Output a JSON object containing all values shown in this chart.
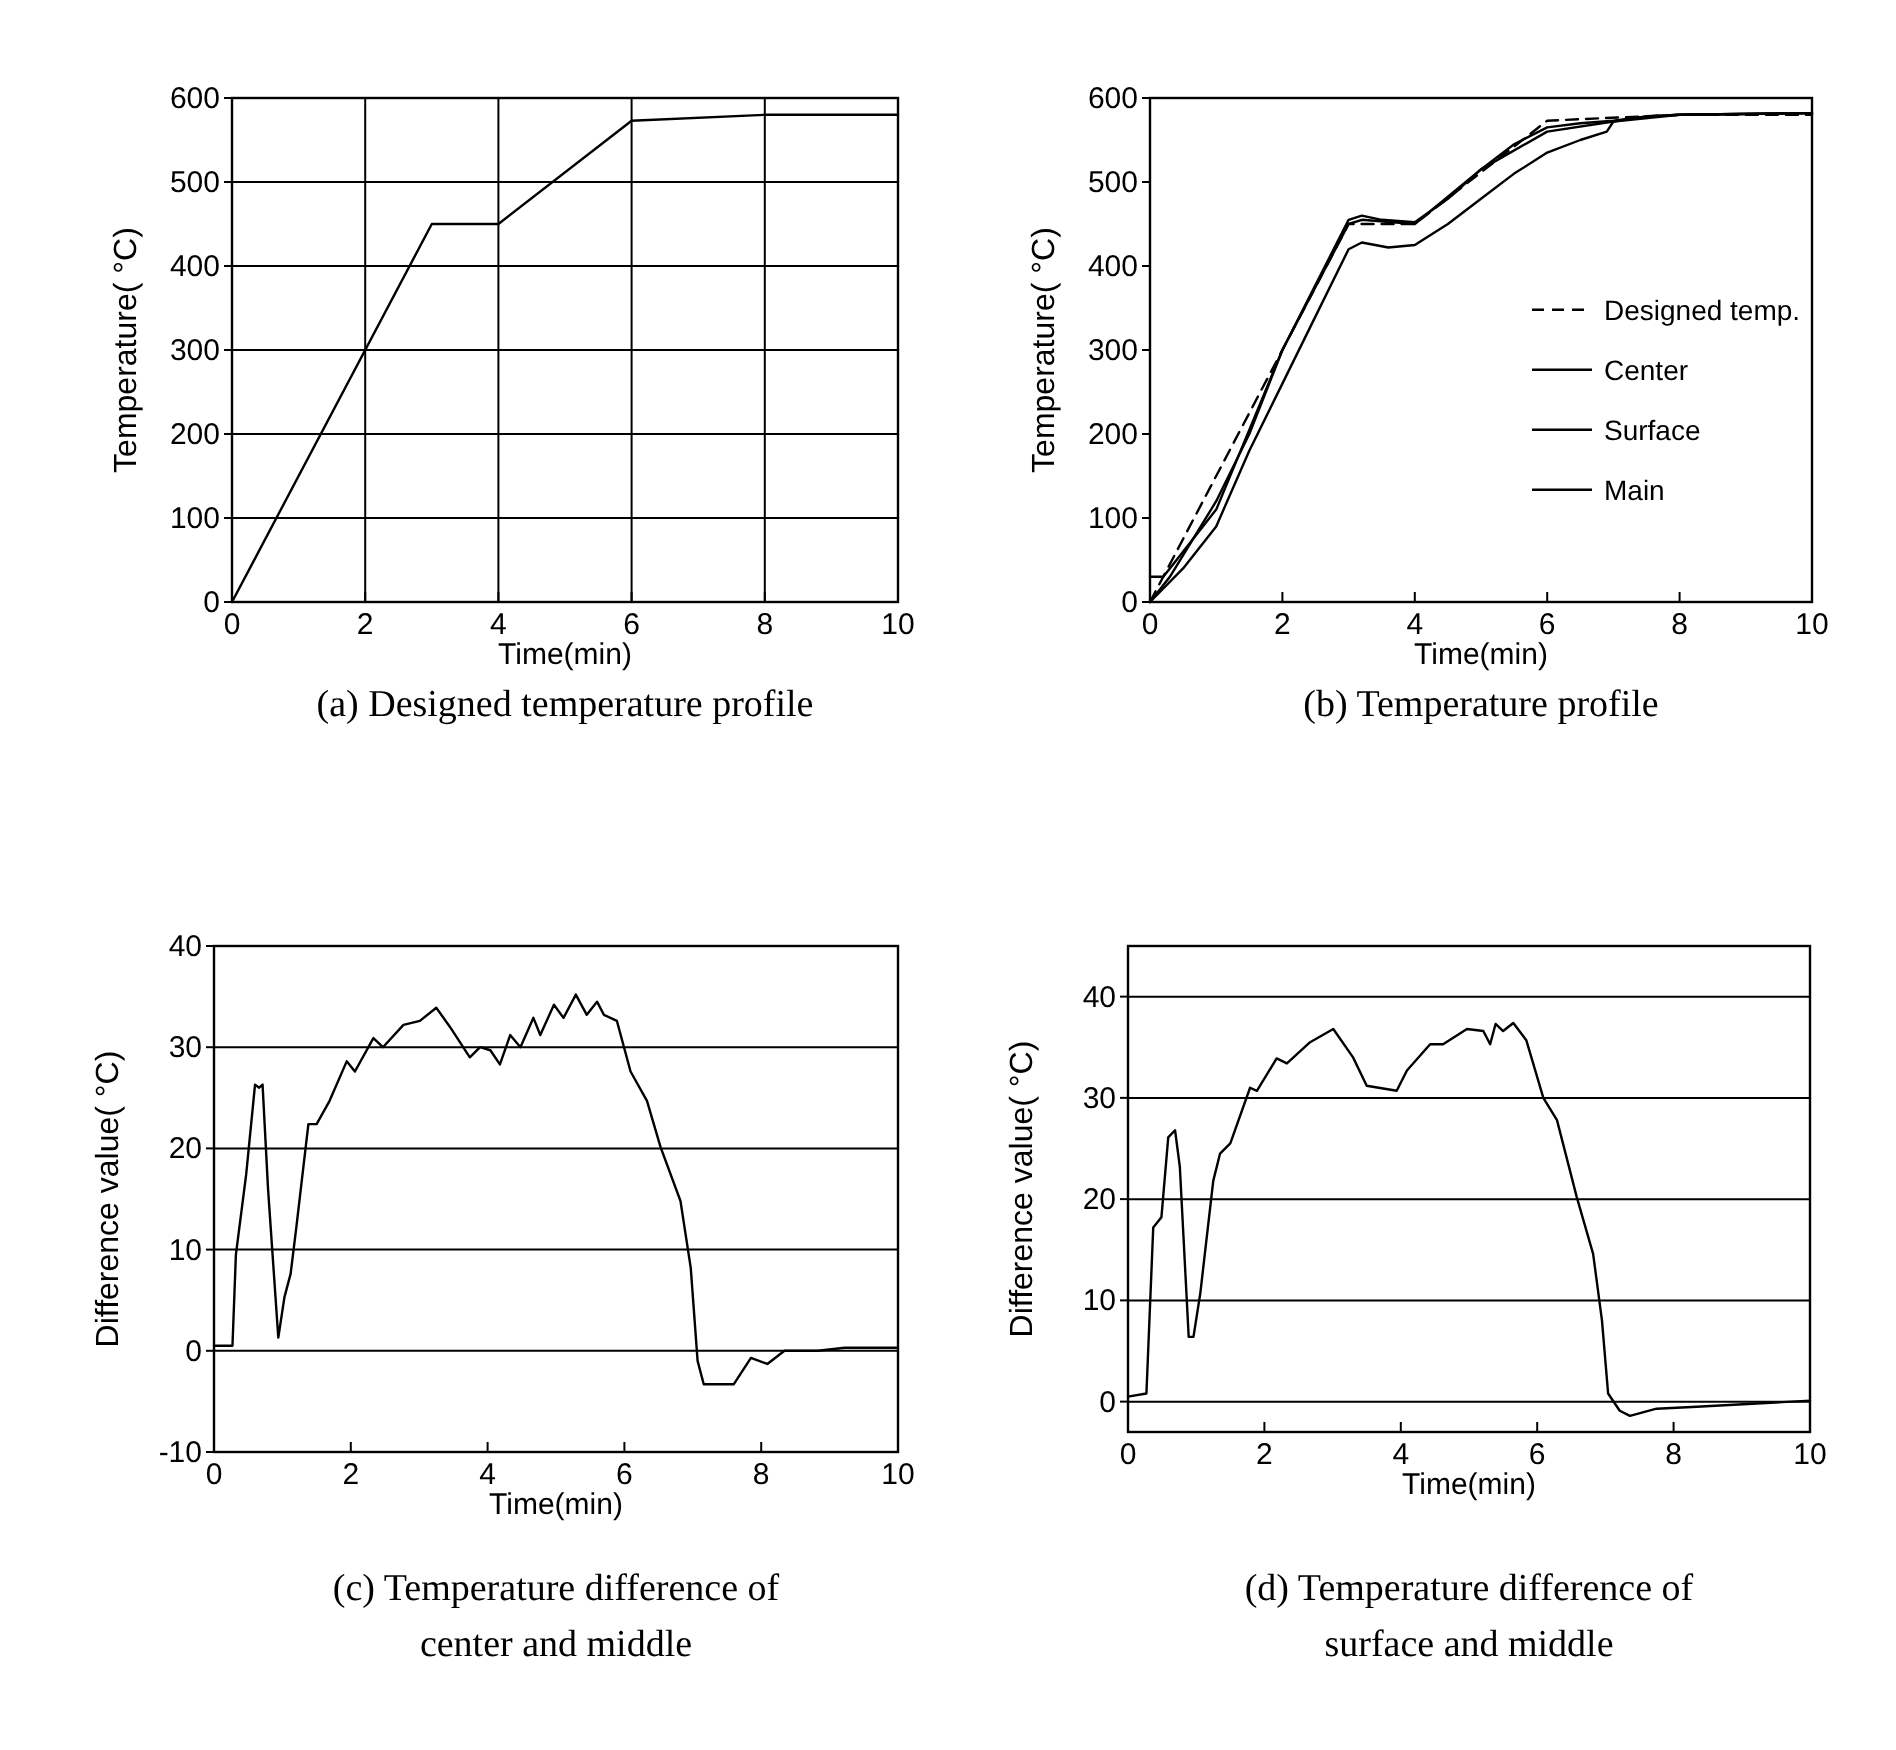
{
  "chart_data": [
    {
      "type": "line",
      "title": "(a) Designed temperature profile",
      "xlabel": "Time(min)",
      "ylabel": "Temperature( °C)",
      "xlim": [
        0,
        10
      ],
      "ylim": [
        0,
        600
      ],
      "xticks": [
        0,
        2,
        4,
        6,
        8,
        10
      ],
      "yticks": [
        0,
        100,
        200,
        300,
        400,
        500,
        600
      ],
      "grid": true,
      "legend": false,
      "series": [
        {
          "color": "#000000",
          "x": [
            0,
            3,
            4,
            6,
            8,
            10
          ],
          "values": [
            0,
            450,
            450,
            573,
            580,
            580
          ]
        }
      ]
    },
    {
      "type": "line",
      "title": "(b) Temperature profile",
      "xlabel": "Time(min)",
      "ylabel": "Temperature( °C)",
      "xlim": [
        0,
        10
      ],
      "ylim": [
        0,
        600
      ],
      "xticks": [
        0,
        2,
        4,
        6,
        8,
        10
      ],
      "yticks": [
        0,
        100,
        200,
        300,
        400,
        500,
        600
      ],
      "grid": false,
      "legend": "right",
      "series": [
        {
          "name": "Designed temp.",
          "color": "#000000",
          "line_style": "dashed",
          "x": [
            0,
            3,
            4,
            6,
            8,
            10
          ],
          "values": [
            0,
            450,
            450,
            573,
            580,
            580
          ]
        },
        {
          "name": "Center",
          "color": "#000000",
          "line_style": "solid",
          "x": [
            0,
            0.2,
            0.3,
            1,
            2,
            3,
            3.2,
            3.5,
            4,
            4.5,
            5,
            5.5,
            6,
            6.5,
            7,
            7.5,
            8,
            10
          ],
          "values": [
            30,
            30,
            40,
            110,
            300,
            455,
            460,
            455,
            452,
            480,
            515,
            545,
            565,
            570,
            573,
            578,
            580,
            582
          ]
        },
        {
          "name": "Surface",
          "color": "#000000",
          "line_style": "solid",
          "x": [
            0,
            0.3,
            1,
            1.5,
            2,
            3,
            3.2,
            4,
            5,
            6,
            7,
            8,
            10
          ],
          "values": [
            0,
            30,
            120,
            200,
            300,
            450,
            455,
            450,
            515,
            560,
            572,
            580,
            582
          ]
        },
        {
          "name": "Main",
          "color": "#000000",
          "line_style": "solid",
          "x": [
            0,
            0.5,
            1,
            1.5,
            2,
            2.5,
            3,
            3.2,
            3.6,
            4,
            4.5,
            5,
            5.5,
            6,
            6.5,
            6.9,
            7,
            7.5,
            8,
            10
          ],
          "values": [
            0,
            40,
            90,
            180,
            260,
            340,
            420,
            428,
            422,
            425,
            450,
            480,
            510,
            535,
            550,
            560,
            572,
            578,
            580,
            582
          ]
        }
      ]
    },
    {
      "type": "line",
      "title": "(c) Temperature difference of center and middle",
      "xlabel": "Time(min)",
      "ylabel": "Difference value( °C)",
      "xlim": [
        0,
        10
      ],
      "ylim": [
        -10,
        40
      ],
      "xticks": [
        0,
        2,
        4,
        6,
        8,
        10
      ],
      "yticks": [
        -10,
        0,
        10,
        20,
        30,
        40
      ],
      "grid": "y",
      "legend": false,
      "series": [
        {
          "color": "#000000",
          "x": [
            0,
            0.27,
            0.32,
            0.47,
            0.6,
            0.66,
            0.71,
            0.79,
            0.94,
            1.03,
            1.12,
            1.2,
            1.38,
            1.5,
            1.69,
            1.94,
            2.06,
            2.33,
            2.47,
            2.77,
            3.01,
            3.25,
            3.45,
            3.74,
            3.89,
            4.04,
            4.18,
            4.33,
            4.48,
            4.67,
            4.77,
            4.97,
            5.11,
            5.29,
            5.45,
            5.6,
            5.7,
            5.89,
            6.09,
            6.33,
            6.53,
            6.82,
            6.97,
            7.07,
            7.16,
            7.6,
            7.85,
            8.09,
            8.34,
            8.83,
            9.22,
            10
          ],
          "values": [
            0.5,
            0.5,
            9.5,
            17.4,
            26.3,
            26,
            26.3,
            16,
            1.3,
            5.3,
            7.6,
            12,
            22.4,
            22.4,
            24.7,
            28.6,
            27.6,
            30.9,
            30,
            32.2,
            32.6,
            33.9,
            32,
            29,
            30,
            29.7,
            28.3,
            31.2,
            30,
            32.9,
            31.2,
            34.2,
            32.9,
            35.2,
            33.2,
            34.5,
            33.2,
            32.6,
            27.6,
            24.7,
            20.1,
            14.8,
            8.2,
            -1,
            -3.3,
            -3.3,
            -0.7,
            -1.3,
            0,
            0,
            0.3,
            0.3
          ]
        }
      ]
    },
    {
      "type": "line",
      "title": "(d) Temperature difference of surface and middle",
      "xlabel": "Time(min)",
      "ylabel": "Difference value( °C)",
      "xlim": [
        0,
        10
      ],
      "ylim": [
        -3,
        45
      ],
      "xticks": [
        0,
        2,
        4,
        6,
        8,
        10
      ],
      "yticks": [
        0,
        10,
        20,
        30,
        40
      ],
      "grid": "y",
      "legend": false,
      "series": [
        {
          "color": "#000000",
          "x": [
            0,
            0.27,
            0.37,
            0.49,
            0.59,
            0.69,
            0.76,
            0.89,
            0.96,
            1.06,
            1.25,
            1.35,
            1.5,
            1.79,
            1.89,
            2.18,
            2.33,
            2.67,
            3.01,
            3.3,
            3.5,
            3.94,
            4.09,
            4.43,
            4.62,
            4.97,
            5.21,
            5.31,
            5.39,
            5.5,
            5.65,
            5.84,
            6.09,
            6.29,
            6.58,
            6.82,
            6.95,
            7.04,
            7.21,
            7.36,
            7.75,
            8.34,
            10
          ],
          "values": [
            0.5,
            0.8,
            17.2,
            18.2,
            26.1,
            26.8,
            23.2,
            6.4,
            6.4,
            10.7,
            21.8,
            24.5,
            25.5,
            31,
            30.7,
            33.9,
            33.4,
            35.5,
            36.8,
            34,
            31.2,
            30.7,
            32.7,
            35.3,
            35.3,
            36.8,
            36.6,
            35.3,
            37.3,
            36.6,
            37.4,
            35.7,
            30,
            27.8,
            20.2,
            14.6,
            8,
            0.8,
            -0.9,
            -1.4,
            -0.7,
            -0.5,
            0.1
          ]
        }
      ]
    }
  ]
}
